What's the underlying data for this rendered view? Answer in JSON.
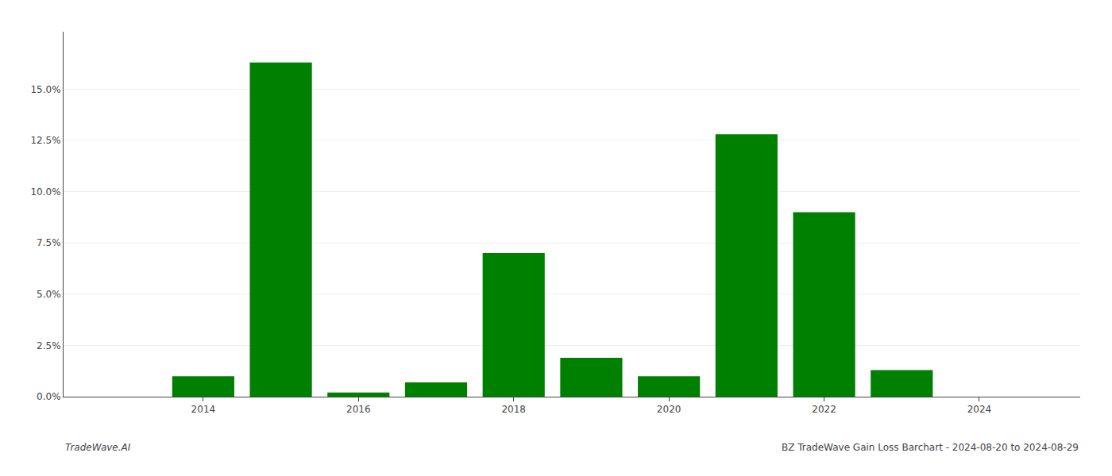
{
  "chart_data": {
    "type": "bar",
    "x": [
      2013,
      2014,
      2015,
      2016,
      2017,
      2018,
      2019,
      2020,
      2021,
      2022,
      2023,
      2024
    ],
    "values": [
      0.0,
      0.01,
      0.163,
      0.002,
      0.007,
      0.07,
      0.019,
      0.01,
      0.128,
      0.09,
      0.013,
      0.0
    ],
    "color": "#008000",
    "xlim": [
      2012.2,
      2025.3
    ],
    "xticks": [
      2014,
      2016,
      2018,
      2020,
      2022,
      2024
    ],
    "ylim": [
      0,
      0.178
    ],
    "yticks": [
      {
        "value": 0.0,
        "label": "0.0%"
      },
      {
        "value": 0.025,
        "label": "2.5%"
      },
      {
        "value": 0.05,
        "label": "5.0%"
      },
      {
        "value": 0.075,
        "label": "7.5%"
      },
      {
        "value": 0.1,
        "label": "10.0%"
      },
      {
        "value": 0.125,
        "label": "12.5%"
      },
      {
        "value": 0.15,
        "label": "15.0%"
      }
    ],
    "grid": true,
    "annotations": [
      "TradeWave.AI",
      "BZ TradeWave Gain Loss Barchart - 2024-08-20 to 2024-08-29"
    ]
  }
}
